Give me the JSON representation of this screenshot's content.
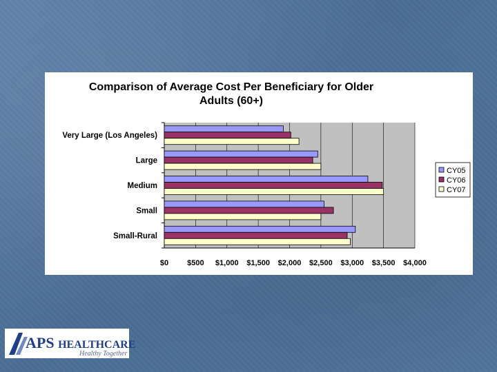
{
  "chart_data": {
    "type": "bar",
    "orientation": "horizontal",
    "title_lines": [
      "Comparison of Average Cost Per Beneficiary for Older",
      "Adults (60+)"
    ],
    "categories": [
      "Very Large (Los Angeles)",
      "Large",
      "Medium",
      "Small",
      "Small-Rural"
    ],
    "series": [
      {
        "name": "CY05",
        "color": "#9999ff",
        "values": [
          1900,
          2450,
          3250,
          2550,
          3050
        ]
      },
      {
        "name": "CY06",
        "color": "#993366",
        "values": [
          2020,
          2370,
          3480,
          2700,
          2920
        ]
      },
      {
        "name": "CY07",
        "color": "#ffffcc",
        "values": [
          2150,
          2500,
          3500,
          2500,
          2970
        ]
      }
    ],
    "xlim": [
      0,
      4000
    ],
    "xticks": [
      0,
      500,
      1000,
      1500,
      2000,
      2500,
      3000,
      3500,
      4000
    ],
    "xtick_labels": [
      "$0",
      "$500",
      "$1,000",
      "$1,500",
      "$2,000",
      "$2,500",
      "$3,000",
      "$3,500",
      "$4,000"
    ],
    "plot_background": "#c0c0c0",
    "grid": true,
    "legend_position": "right"
  },
  "footer": {
    "logo_text_main": "APS",
    "logo_text_rest": "HEALTHCARE",
    "logo_tagline": "Healthy Together"
  }
}
